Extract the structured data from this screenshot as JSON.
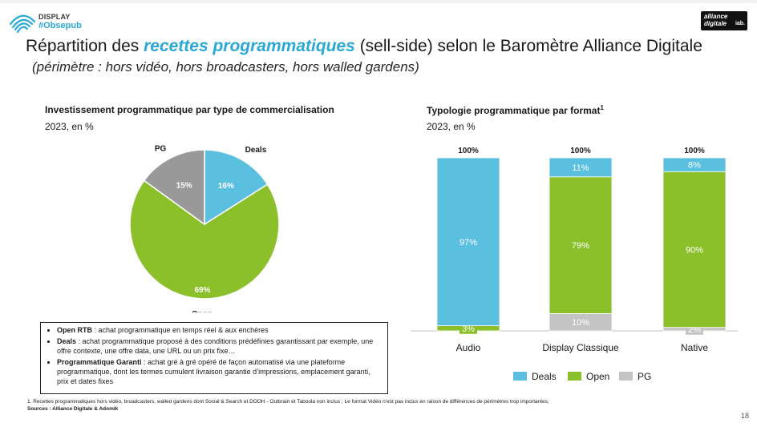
{
  "header": {
    "brand_tag": "DISPLAY",
    "brand_hashtag": "#Obsepub",
    "partner_line1": "alliance",
    "partner_line2": "digitale",
    "partner_line3": "iab."
  },
  "title": {
    "part1": "Répartition des ",
    "highlight": "recettes programmatiques",
    "part2": " (sell-side) selon le Baromètre Alliance Digitale"
  },
  "subtitle": "(périmètre : hors vidéo, hors broadcasters, hors walled gardens)",
  "left_section": {
    "title": "Investissement programmatique par type de commercialisation",
    "subtitle": "2023, en %"
  },
  "right_section": {
    "title": "Typologie programmatique par format",
    "title_sup": "1",
    "subtitle": "2023, en %"
  },
  "colors": {
    "Deals": "#5bc0e0",
    "Open": "#8cc02a",
    "PG": "#999999",
    "PG_bar": "#c4c4c4"
  },
  "chart_data": [
    {
      "type": "pie",
      "title": "Investissement programmatique par type de commercialisation",
      "subtitle": "2023, en %",
      "slices": [
        {
          "name": "Deals",
          "value": 16,
          "label": "16%"
        },
        {
          "name": "Open",
          "value": 69,
          "label": "69%"
        },
        {
          "name": "PG",
          "value": 15,
          "label": "15%"
        }
      ]
    },
    {
      "type": "bar",
      "stacked": true,
      "title": "Typologie programmatique par format",
      "subtitle": "2023, en %",
      "categories": [
        "Audio",
        "Display Classique",
        "Native"
      ],
      "totals": [
        "100%",
        "100%",
        "100%"
      ],
      "series": [
        {
          "name": "PG",
          "values": [
            0,
            10,
            2
          ],
          "labels": [
            "",
            "10%",
            "2%"
          ]
        },
        {
          "name": "Open",
          "values": [
            3,
            79,
            90
          ],
          "labels": [
            "3%",
            "79%",
            "90%"
          ]
        },
        {
          "name": "Deals",
          "values": [
            97,
            11,
            8
          ],
          "labels": [
            "97%",
            "11%",
            "8%"
          ]
        }
      ],
      "ylim": [
        0,
        100
      ],
      "legend": [
        "Deals",
        "Open",
        "PG"
      ],
      "legend_position": "bottom"
    }
  ],
  "definitions": [
    {
      "term": "Open RTB",
      "text": " : achat programmatique en temps réel & aux enchères"
    },
    {
      "term": "Deals",
      "text": " : achat programmatique proposé à des conditions prédéfinies garantissant par exemple, une offre contexte, une offre data, une URL ou un prix fixe…"
    },
    {
      "term": "Programmatique Garanti",
      "text": " : achat gré à gré opéré de façon automatisé via une plateforme programmatique, dont les termes cumulent livraison garantie d’impressions, emplacement garanti, prix et dates fixes"
    }
  ],
  "footnote": "1. Recettes programmatiques hors vidéo, broadcasters, walled gardens dont Social & Search et DOOH - Outbrain et Taboola non inclus ; Le format Vidéo n’est pas inclus en raison de différences de périmètres trop importantes;",
  "sources": "Sources : Alliance Digitale & Adomik",
  "page_number": "18"
}
